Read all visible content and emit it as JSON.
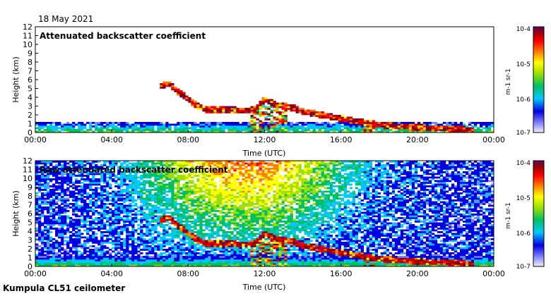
{
  "header": {
    "date": "18 May 2021"
  },
  "footer": {
    "site": "Kumpula CL51 ceilometer"
  },
  "colorbar": {
    "labels": [
      "10-4",
      "10-5",
      "10-6",
      "10-7"
    ],
    "unit": "m-1 sr-1",
    "colors": [
      "#e8e8f8",
      "#8080ff",
      "#0000e0",
      "#00c8ff",
      "#00c060",
      "#a0e000",
      "#ffff00",
      "#ff8000",
      "#ff0000",
      "#c00000",
      "#800000",
      "#600060"
    ]
  },
  "chart_data": [
    {
      "type": "heatmap",
      "title": "Attenuated backscatter coefficient",
      "xlabel": "Time (UTC)",
      "ylabel": "Height (km)",
      "xticks": [
        "00:00",
        "04:00",
        "08:00",
        "12:00",
        "16:00",
        "20:00",
        "00:00"
      ],
      "yticks": [
        "0",
        "1",
        "2",
        "3",
        "4",
        "5",
        "6",
        "7",
        "8",
        "9",
        "10",
        "11",
        "12"
      ],
      "xlim": [
        0,
        24
      ],
      "ylim": [
        0,
        12
      ],
      "zscale": "log",
      "zlim": [
        1e-07,
        0.0001
      ],
      "cloud_layer": {
        "time_h": [
          6.5,
          7.0,
          7.5,
          8.0,
          8.5,
          9.0,
          10.0,
          11.0,
          11.5,
          12.0,
          12.5,
          13.0,
          13.5,
          14.0,
          15.0,
          16.0,
          17.0,
          18.0,
          19.0,
          20.0,
          21.0,
          22.0,
          23.0
        ],
        "height_km": [
          5.2,
          5.6,
          4.6,
          3.8,
          3.0,
          2.6,
          2.6,
          2.5,
          2.6,
          3.8,
          3.2,
          3.0,
          2.8,
          2.4,
          2.0,
          1.6,
          1.2,
          0.9,
          0.7,
          0.6,
          0.5,
          0.4,
          0.3
        ]
      }
    },
    {
      "type": "heatmap",
      "title": "Raw attenuated backscatter coefficient",
      "xlabel": "Time (UTC)",
      "ylabel": "Height (km)",
      "xticks": [
        "00:00",
        "04:00",
        "08:00",
        "12:00",
        "16:00",
        "20:00",
        "00:00"
      ],
      "yticks": [
        "0",
        "1",
        "2",
        "3",
        "4",
        "5",
        "6",
        "7",
        "8",
        "9",
        "10",
        "11",
        "12"
      ],
      "xlim": [
        0,
        24
      ],
      "ylim": [
        0,
        12
      ],
      "zscale": "log",
      "zlim": [
        1e-07,
        0.0001
      ]
    }
  ]
}
